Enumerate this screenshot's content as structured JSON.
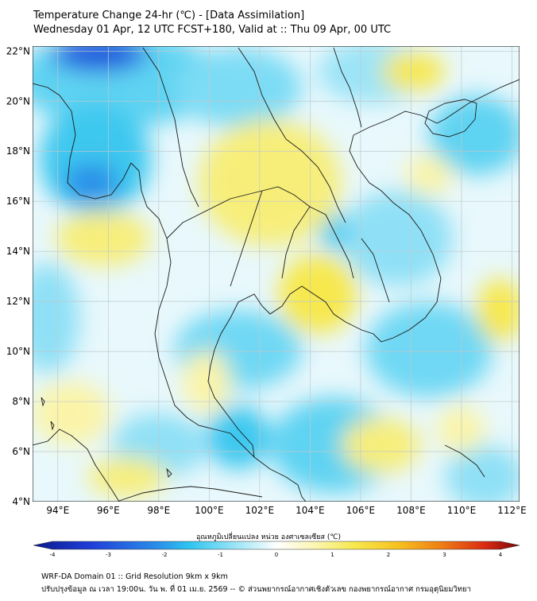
{
  "header": {
    "title": "Temperature Change 24-hr (℃) - [Data Assimilation]",
    "subtitle": "Wednesday 01 Apr, 12 UTC FCST+180, Valid at :: Thu 09 Apr, 00 UTC"
  },
  "map": {
    "lon_labels": [
      "94°E",
      "96°E",
      "98°E",
      "100°E",
      "102°E",
      "104°E",
      "106°E",
      "108°E",
      "110°E",
      "112°E"
    ],
    "lat_labels": [
      "4°N",
      "6°N",
      "8°N",
      "10°N",
      "12°N",
      "14°N",
      "16°N",
      "18°N",
      "20°N",
      "22°N"
    ],
    "lon_range": [
      93,
      112.3
    ],
    "lat_range": [
      4,
      22.2
    ],
    "grid": true
  },
  "colorbar": {
    "title": "อุณหภูมิเปลี่ยนแปลง หน่วย องศาเซลเซียส (℃)",
    "ticks": [
      "-4",
      "-3",
      "-2",
      "-1",
      "0",
      "1",
      "2",
      "3",
      "4"
    ],
    "range": [
      -4,
      4
    ],
    "colors": [
      "#0a1a8c",
      "#1f3fd8",
      "#2a8ae8",
      "#2ec4ef",
      "#7adcf4",
      "#d6f3fb",
      "#ffffff",
      "#fbf8c8",
      "#f7ee6a",
      "#f7c21f",
      "#ee7d14",
      "#d92a12",
      "#7a0707"
    ]
  },
  "footer": {
    "line1": "WRF-DA Domain 01 :: Grid Resolution 9km x 9km",
    "line2": "ปรับปรุงข้อมูล ณ เวลา 19:00น. วัน พ. ที่ 01 เม.ย. 2569 -- © ส่วนพยากรณ์อากาศเชิงตัวเลข กองพยากรณ์อากาศ กรมอุตุนิยมวิทยา"
  }
}
